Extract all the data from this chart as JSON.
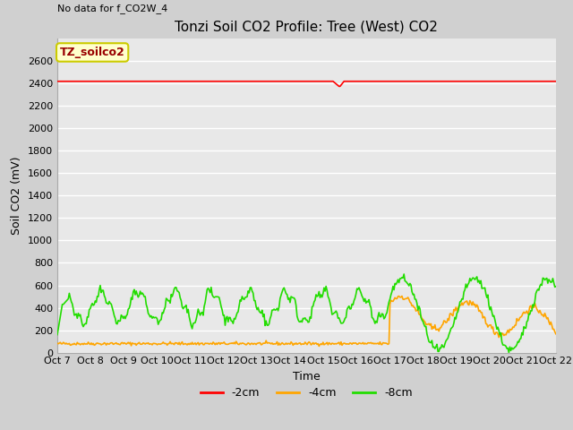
{
  "title": "Tonzi Soil CO2 Profile: Tree (West) CO2",
  "no_data_label": "No data for f_CO2W_4",
  "ylabel": "Soil CO2 (mV)",
  "xlabel": "Time",
  "ylim": [
    0,
    2800
  ],
  "yticks": [
    0,
    200,
    400,
    600,
    800,
    1000,
    1200,
    1400,
    1600,
    1800,
    2000,
    2200,
    2400,
    2600
  ],
  "fig_bg": "#d0d0d0",
  "plot_bg": "#e8e8e8",
  "grid_color": "#ffffff",
  "legend_box_label": "TZ_soilco2",
  "legend_box_facecolor": "#ffffcc",
  "legend_box_edgecolor": "#cccc00",
  "legend_box_textcolor": "#990000",
  "color_2cm": "#ff0000",
  "color_4cm": "#ffa500",
  "color_8cm": "#22dd00",
  "x_tick_labels": [
    "Oct 7",
    "Oct 8",
    "Oct 9",
    "Oct 10",
    "Oct 11",
    "Oct 12",
    "Oct 13",
    "Oct 14",
    "Oct 15",
    "Oct 16",
    "Oct 17",
    "Oct 18",
    "Oct 19",
    "Oct 20",
    "Oct 21",
    "Oct 22"
  ],
  "label_2cm": "-2cm",
  "label_4cm": "-4cm",
  "label_8cm": "-8cm",
  "title_fontsize": 11,
  "axis_label_fontsize": 9,
  "tick_fontsize": 8,
  "legend_fontsize": 9
}
